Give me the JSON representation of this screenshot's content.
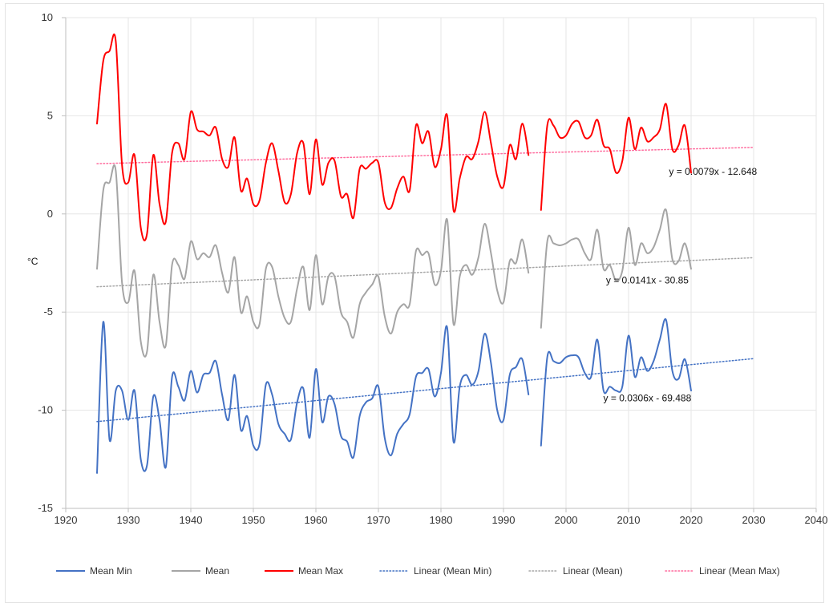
{
  "chart_data": {
    "type": "line",
    "title": "",
    "xlabel": "",
    "ylabel": "°C",
    "xlim": [
      1920,
      2040
    ],
    "ylim": [
      -15,
      10
    ],
    "xticks": [
      1920,
      1930,
      1940,
      1950,
      1960,
      1970,
      1980,
      1990,
      2000,
      2010,
      2020,
      2030,
      2040
    ],
    "yticks": [
      -15,
      -10,
      -5,
      0,
      5,
      10
    ],
    "grid": true,
    "legend_position": "bottom",
    "series": [
      {
        "name": "Mean Min",
        "color": "#4472c4",
        "style": "solid",
        "segments": [
          {
            "x": [
              1925,
              1926,
              1927,
              1928,
              1929,
              1930,
              1931,
              1932,
              1933,
              1934,
              1935,
              1936,
              1937,
              1938,
              1939,
              1940,
              1941,
              1942,
              1943,
              1944,
              1945,
              1946,
              1947,
              1948,
              1949,
              1950,
              1951,
              1952,
              1953,
              1954,
              1955,
              1956,
              1957,
              1958,
              1959,
              1960,
              1961,
              1962,
              1963,
              1964,
              1965,
              1966,
              1967,
              1968,
              1969,
              1970,
              1971,
              1972,
              1973,
              1974,
              1975,
              1976,
              1977,
              1978,
              1979,
              1980,
              1981,
              1982,
              1983,
              1984,
              1985,
              1986,
              1987,
              1988,
              1989,
              1990,
              1991,
              1992,
              1993,
              1994
            ],
            "y": [
              -13.2,
              -5.5,
              -11.5,
              -9.0,
              -9.0,
              -10.5,
              -9.0,
              -12.5,
              -12.8,
              -9.3,
              -10.5,
              -12.9,
              -8.3,
              -8.8,
              -9.5,
              -8.0,
              -9.1,
              -8.2,
              -8.1,
              -7.5,
              -9.2,
              -10.5,
              -8.2,
              -11.0,
              -10.3,
              -11.8,
              -11.7,
              -8.7,
              -9.2,
              -10.7,
              -11.2,
              -11.5,
              -9.6,
              -8.9,
              -11.4,
              -7.9,
              -10.6,
              -9.3,
              -9.7,
              -11.3,
              -11.6,
              -12.4,
              -10.3,
              -9.6,
              -9.4,
              -8.8,
              -11.4,
              -12.3,
              -11.2,
              -10.7,
              -10.2,
              -8.3,
              -8.1,
              -7.9,
              -9.3,
              -8.1,
              -5.8,
              -11.6,
              -8.8,
              -8.2,
              -8.7,
              -8.0,
              -6.1,
              -7.6,
              -10.0,
              -10.5,
              -8.2,
              -7.8,
              -7.4,
              -9.2
            ]
          },
          {
            "x": [
              1996,
              1997,
              1998,
              1999,
              2000,
              2001,
              2002,
              2003,
              2004,
              2005,
              2006,
              2007,
              2008,
              2009,
              2010,
              2011,
              2012,
              2013,
              2014,
              2015,
              2016,
              2017,
              2018,
              2019,
              2020
            ],
            "y": [
              -11.8,
              -7.3,
              -7.5,
              -7.6,
              -7.3,
              -7.2,
              -7.3,
              -8.1,
              -8.3,
              -6.4,
              -9.0,
              -8.8,
              -9.0,
              -8.8,
              -6.2,
              -8.3,
              -7.3,
              -8.0,
              -7.5,
              -6.4,
              -5.4,
              -8.0,
              -8.4,
              -7.4,
              -9.0
            ]
          }
        ]
      },
      {
        "name": "Mean",
        "color": "#a5a5a5",
        "style": "solid",
        "segments": [
          {
            "x": [
              1925,
              1926,
              1927,
              1928,
              1929,
              1930,
              1931,
              1932,
              1933,
              1934,
              1935,
              1936,
              1937,
              1938,
              1939,
              1940,
              1941,
              1942,
              1943,
              1944,
              1945,
              1946,
              1947,
              1948,
              1949,
              1950,
              1951,
              1952,
              1953,
              1954,
              1955,
              1956,
              1957,
              1958,
              1959,
              1960,
              1961,
              1962,
              1963,
              1964,
              1965,
              1966,
              1967,
              1968,
              1969,
              1970,
              1971,
              1972,
              1973,
              1974,
              1975,
              1976,
              1977,
              1978,
              1979,
              1980,
              1981,
              1982,
              1983,
              1984,
              1985,
              1986,
              1987,
              1988,
              1989,
              1990,
              1991,
              1992,
              1993,
              1994
            ],
            "y": [
              -2.8,
              1.2,
              1.6,
              2.2,
              -3.5,
              -4.5,
              -2.9,
              -6.5,
              -7.0,
              -3.1,
              -5.5,
              -6.7,
              -2.6,
              -2.6,
              -3.3,
              -1.4,
              -2.3,
              -2.0,
              -2.2,
              -1.6,
              -3.0,
              -4.0,
              -2.2,
              -5.0,
              -4.2,
              -5.5,
              -5.6,
              -2.8,
              -2.7,
              -4.2,
              -5.3,
              -5.5,
              -3.8,
              -2.7,
              -4.9,
              -2.1,
              -4.6,
              -3.2,
              -3.2,
              -5.0,
              -5.5,
              -6.3,
              -4.6,
              -4.0,
              -3.6,
              -3.2,
              -5.2,
              -6.1,
              -5.0,
              -4.6,
              -4.6,
              -1.9,
              -2.1,
              -2.0,
              -3.6,
              -2.9,
              -0.3,
              -5.6,
              -3.2,
              -2.6,
              -3.1,
              -2.2,
              -0.5,
              -2.0,
              -3.9,
              -4.5,
              -2.4,
              -2.5,
              -1.3,
              -3.0
            ]
          },
          {
            "x": [
              1996,
              1997,
              1998,
              1999,
              2000,
              2001,
              2002,
              2003,
              2004,
              2005,
              2006,
              2007,
              2008,
              2009,
              2010,
              2011,
              2012,
              2013,
              2014,
              2015,
              2016,
              2017,
              2018,
              2019,
              2020
            ],
            "y": [
              -5.8,
              -1.4,
              -1.5,
              -1.6,
              -1.5,
              -1.3,
              -1.3,
              -2.0,
              -2.3,
              -0.8,
              -2.8,
              -2.6,
              -3.4,
              -2.9,
              -0.7,
              -2.6,
              -1.5,
              -2.0,
              -1.7,
              -0.8,
              0.2,
              -2.3,
              -2.4,
              -1.5,
              -2.8
            ]
          }
        ]
      },
      {
        "name": "Mean Max",
        "color": "#ff0000",
        "style": "solid",
        "segments": [
          {
            "x": [
              1925,
              1926,
              1927,
              1928,
              1929,
              1930,
              1931,
              1932,
              1933,
              1934,
              1935,
              1936,
              1937,
              1938,
              1939,
              1940,
              1941,
              1942,
              1943,
              1944,
              1945,
              1946,
              1947,
              1948,
              1949,
              1950,
              1951,
              1952,
              1953,
              1954,
              1955,
              1956,
              1957,
              1958,
              1959,
              1960,
              1961,
              1962,
              1963,
              1964,
              1965,
              1966,
              1967,
              1968,
              1969,
              1970,
              1971,
              1972,
              1973,
              1974,
              1975,
              1976,
              1977,
              1978,
              1979,
              1980,
              1981,
              1982,
              1983,
              1984,
              1985,
              1986,
              1987,
              1988,
              1989,
              1990,
              1991,
              1992,
              1993,
              1994
            ],
            "y": [
              4.6,
              7.8,
              8.3,
              8.8,
              2.5,
              1.6,
              3.0,
              -0.7,
              -1.0,
              3.0,
              0.5,
              -0.4,
              3.1,
              3.6,
              2.8,
              5.2,
              4.3,
              4.2,
              4.0,
              4.4,
              2.8,
              2.4,
              3.9,
              1.2,
              1.8,
              0.5,
              0.7,
              2.6,
              3.6,
              2.2,
              0.6,
              1.0,
              3.1,
              3.6,
              1.0,
              3.8,
              1.5,
              2.6,
              2.7,
              0.9,
              1.0,
              -0.2,
              2.3,
              2.3,
              2.6,
              2.6,
              0.6,
              0.3,
              1.3,
              1.9,
              1.2,
              4.5,
              3.6,
              4.2,
              2.4,
              3.3,
              5.0,
              0.2,
              1.8,
              2.9,
              2.8,
              3.7,
              5.2,
              3.6,
              1.9,
              1.4,
              3.5,
              2.8,
              4.6,
              3.0
            ]
          },
          {
            "x": [
              1996,
              1997,
              1998,
              1999,
              2000,
              2001,
              2002,
              2003,
              2004,
              2005,
              2006,
              2007,
              2008,
              2009,
              2010,
              2011,
              2012,
              2013,
              2014,
              2015,
              2016,
              2017,
              2018,
              2019,
              2020
            ],
            "y": [
              0.2,
              4.5,
              4.5,
              3.9,
              4.0,
              4.6,
              4.7,
              3.9,
              4.0,
              4.8,
              3.5,
              3.3,
              2.1,
              2.7,
              4.9,
              3.3,
              4.4,
              3.7,
              3.9,
              4.3,
              5.6,
              3.3,
              3.5,
              4.5,
              2.1
            ]
          }
        ]
      },
      {
        "name": "Linear (Mean Min)",
        "color": "#4472c4",
        "style": "dotted",
        "x": [
          1925,
          2030
        ],
        "y": [
          -10.58,
          -7.37
        ],
        "equation": "y = 0.0306x - 69.488"
      },
      {
        "name": "Linear (Mean)",
        "color": "#a5a5a5",
        "style": "dotted",
        "x": [
          1925,
          2030
        ],
        "y": [
          -3.71,
          -2.23
        ],
        "equation": "y = 0.0141x - 30.85"
      },
      {
        "name": "Linear (Mean Max)",
        "color": "#ff6b9d",
        "style": "dotted",
        "x": [
          1925,
          2030
        ],
        "y": [
          2.56,
          3.39
        ],
        "equation": "y = 0.0079x - 12.648"
      }
    ]
  }
}
